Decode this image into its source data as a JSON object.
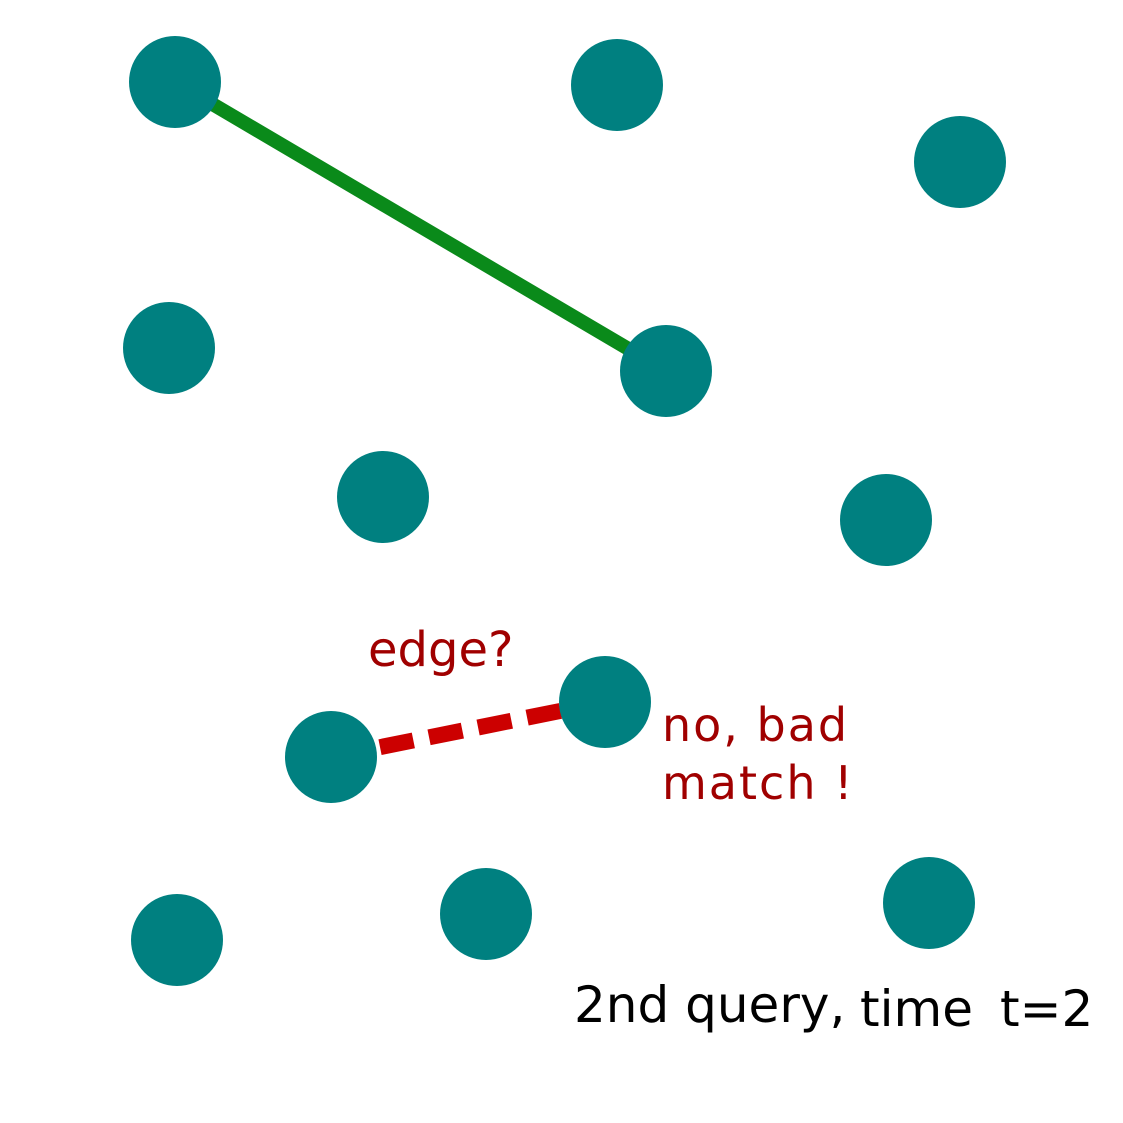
{
  "diagram": {
    "node_color": "#008080",
    "accepted_edge_color": "#0a8a1a",
    "rejected_edge_color": "#cc0000",
    "annotation_color": "#a00000",
    "caption_color": "#000000",
    "nodes": [
      {
        "id": "n1"
      },
      {
        "id": "n2"
      },
      {
        "id": "n3"
      },
      {
        "id": "n4"
      },
      {
        "id": "n5"
      },
      {
        "id": "n6"
      },
      {
        "id": "n7"
      },
      {
        "id": "n8"
      },
      {
        "id": "n9"
      },
      {
        "id": "n10"
      },
      {
        "id": "n11"
      },
      {
        "id": "n12"
      }
    ],
    "edges": [
      {
        "from": "n1",
        "to": "n5",
        "status": "accepted"
      },
      {
        "from": "n9",
        "to": "n10",
        "status": "rejected"
      }
    ],
    "labels": {
      "edge_question": "edge?",
      "verdict_line1": "no, bad",
      "verdict_line2": "match !",
      "caption_part1": "2nd query,",
      "caption_part2": "time",
      "caption_part3": "t=2"
    }
  }
}
